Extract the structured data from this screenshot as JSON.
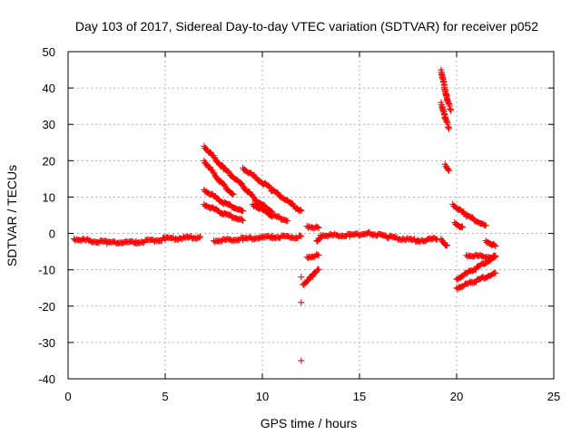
{
  "chart_data": {
    "type": "scatter",
    "title": "Day 103 of 2017, Sidereal Day-to-day VTEC variation (SDTVAR) for receiver p052",
    "xlabel": "GPS time / hours",
    "ylabel": "SDTVAR / TECUs",
    "xlim": [
      0,
      25
    ],
    "ylim": [
      -40,
      50
    ],
    "xticks": [
      0,
      5,
      10,
      15,
      20,
      25
    ],
    "yticks": [
      -40,
      -30,
      -20,
      -10,
      0,
      10,
      20,
      30,
      40,
      50
    ],
    "grid": true,
    "marker": "+",
    "color": "#ff0000",
    "series": [
      {
        "segments": [
          [
            [
              0.3,
              -1.5
            ],
            [
              2.0,
              -2.5
            ],
            [
              3.5,
              -2.5
            ],
            [
              5.0,
              -1.5
            ],
            [
              6.8,
              -1.0
            ]
          ],
          [
            [
              7.5,
              -2.0
            ],
            [
              9.0,
              -1.5
            ],
            [
              10.5,
              -1.0
            ],
            [
              12.0,
              -1.0
            ]
          ],
          [
            [
              12.3,
              2.0
            ],
            [
              12.9,
              1.5
            ]
          ],
          [
            [
              12.3,
              -6.5
            ],
            [
              12.9,
              -6.0
            ]
          ],
          [
            [
              12.8,
              -2.0
            ],
            [
              13.0,
              -1.0
            ]
          ],
          [
            [
              13.0,
              -0.5
            ],
            [
              14.5,
              -0.5
            ],
            [
              15.5,
              0.0
            ],
            [
              16.5,
              -1.0
            ],
            [
              18.0,
              -2.0
            ],
            [
              19.0,
              -1.5
            ]
          ],
          [
            [
              7.0,
              24.0
            ],
            [
              8.0,
              18.0
            ],
            [
              9.0,
              13.0
            ]
          ],
          [
            [
              7.0,
              20.0
            ],
            [
              7.8,
              14.5
            ],
            [
              8.5,
              10.5
            ]
          ],
          [
            [
              7.0,
              12.0
            ],
            [
              8.0,
              8.5
            ],
            [
              9.0,
              6.0
            ]
          ],
          [
            [
              7.0,
              8.0
            ],
            [
              8.0,
              5.5
            ],
            [
              9.0,
              3.5
            ]
          ],
          [
            [
              9.0,
              18.0
            ],
            [
              10.5,
              12.0
            ],
            [
              12.0,
              6.0
            ]
          ],
          [
            [
              9.0,
              13.0
            ],
            [
              9.8,
              8.5
            ],
            [
              10.5,
              6.0
            ]
          ],
          [
            [
              9.5,
              8.0
            ],
            [
              10.5,
              5.0
            ],
            [
              11.3,
              3.5
            ]
          ],
          [
            [
              12.1,
              -14.0
            ],
            [
              12.6,
              -11.5
            ],
            [
              12.9,
              -10.0
            ]
          ],
          [
            [
              19.2,
              45.0
            ],
            [
              19.5,
              37.0
            ],
            [
              19.7,
              34.0
            ]
          ],
          [
            [
              19.2,
              36.0
            ],
            [
              19.4,
              32.0
            ],
            [
              19.6,
              29.0
            ]
          ],
          [
            [
              19.4,
              19.0
            ],
            [
              19.6,
              17.5
            ]
          ],
          [
            [
              19.8,
              8.0
            ],
            [
              20.5,
              5.0
            ],
            [
              21.5,
              2.0
            ]
          ],
          [
            [
              19.9,
              3.0
            ],
            [
              20.3,
              1.5
            ]
          ],
          [
            [
              19.2,
              -1.5
            ],
            [
              19.5,
              -3.5
            ]
          ],
          [
            [
              21.5,
              -2.0
            ],
            [
              22.0,
              -3.5
            ]
          ],
          [
            [
              20.5,
              -6.0
            ],
            [
              22.0,
              -6.5
            ]
          ],
          [
            [
              20.0,
              -12.5
            ],
            [
              21.0,
              -9.5
            ],
            [
              22.0,
              -6.5
            ]
          ],
          [
            [
              20.0,
              -15.0
            ],
            [
              21.0,
              -13.0
            ],
            [
              22.0,
              -11.0
            ]
          ]
        ],
        "isolated": [
          [
            12.0,
            -12.0
          ],
          [
            12.0,
            -19.0
          ],
          [
            12.0,
            -35.0
          ]
        ]
      }
    ]
  }
}
